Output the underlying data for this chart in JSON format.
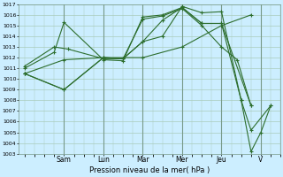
{
  "title": "",
  "xlabel": "Pression niveau de la mer( hPa )",
  "ylabel": "",
  "bg_color": "#cceeff",
  "grid_color": "#aaccbb",
  "line_color": "#2d6e2d",
  "ylim": [
    1003,
    1017
  ],
  "yticks": [
    1003,
    1004,
    1005,
    1006,
    1007,
    1008,
    1009,
    1010,
    1011,
    1012,
    1013,
    1014,
    1015,
    1016,
    1017
  ],
  "day_labels": [
    "Sam",
    "Lun",
    "Mar",
    "Mer",
    "Jeu",
    "V"
  ],
  "day_positions": [
    2,
    4,
    6,
    8,
    10,
    12
  ],
  "xlim": [
    -0.3,
    13
  ],
  "series": [
    {
      "x": [
        0,
        2,
        4,
        6,
        8,
        10,
        11.5
      ],
      "y": [
        1010.5,
        1009.0,
        1012.0,
        1012.0,
        1013.0,
        1015.0,
        1016.0
      ]
    },
    {
      "x": [
        0,
        1.5,
        2.0,
        4,
        5,
        6,
        7,
        8,
        9,
        10,
        11.5
      ],
      "y": [
        1011.0,
        1012.5,
        1015.3,
        1011.8,
        1011.7,
        1015.8,
        1016.0,
        1016.7,
        1015.2,
        1015.2,
        1007.5
      ]
    },
    {
      "x": [
        0,
        1.5,
        2.2,
        4,
        5,
        6,
        7,
        8,
        9,
        10,
        10.8,
        11.5
      ],
      "y": [
        1011.2,
        1013.0,
        1012.8,
        1011.9,
        1011.9,
        1015.6,
        1015.9,
        1016.6,
        1015.0,
        1013.0,
        1011.8,
        1007.5
      ]
    },
    {
      "x": [
        0,
        2,
        4,
        5,
        6,
        7,
        8,
        9,
        10,
        11.0,
        11.5,
        12.5
      ],
      "y": [
        1010.5,
        1011.8,
        1012.0,
        1011.9,
        1013.5,
        1014.0,
        1016.8,
        1016.2,
        1016.3,
        1008.0,
        1005.2,
        1007.5
      ]
    },
    {
      "x": [
        0,
        2,
        4,
        5,
        6,
        7,
        8,
        9,
        10,
        11.0,
        11.5,
        12.0,
        12.5
      ],
      "y": [
        1010.5,
        1009.0,
        1012.0,
        1011.9,
        1013.5,
        1015.5,
        1016.7,
        1015.2,
        1015.2,
        1008.0,
        1003.2,
        1005.0,
        1007.5
      ]
    }
  ]
}
